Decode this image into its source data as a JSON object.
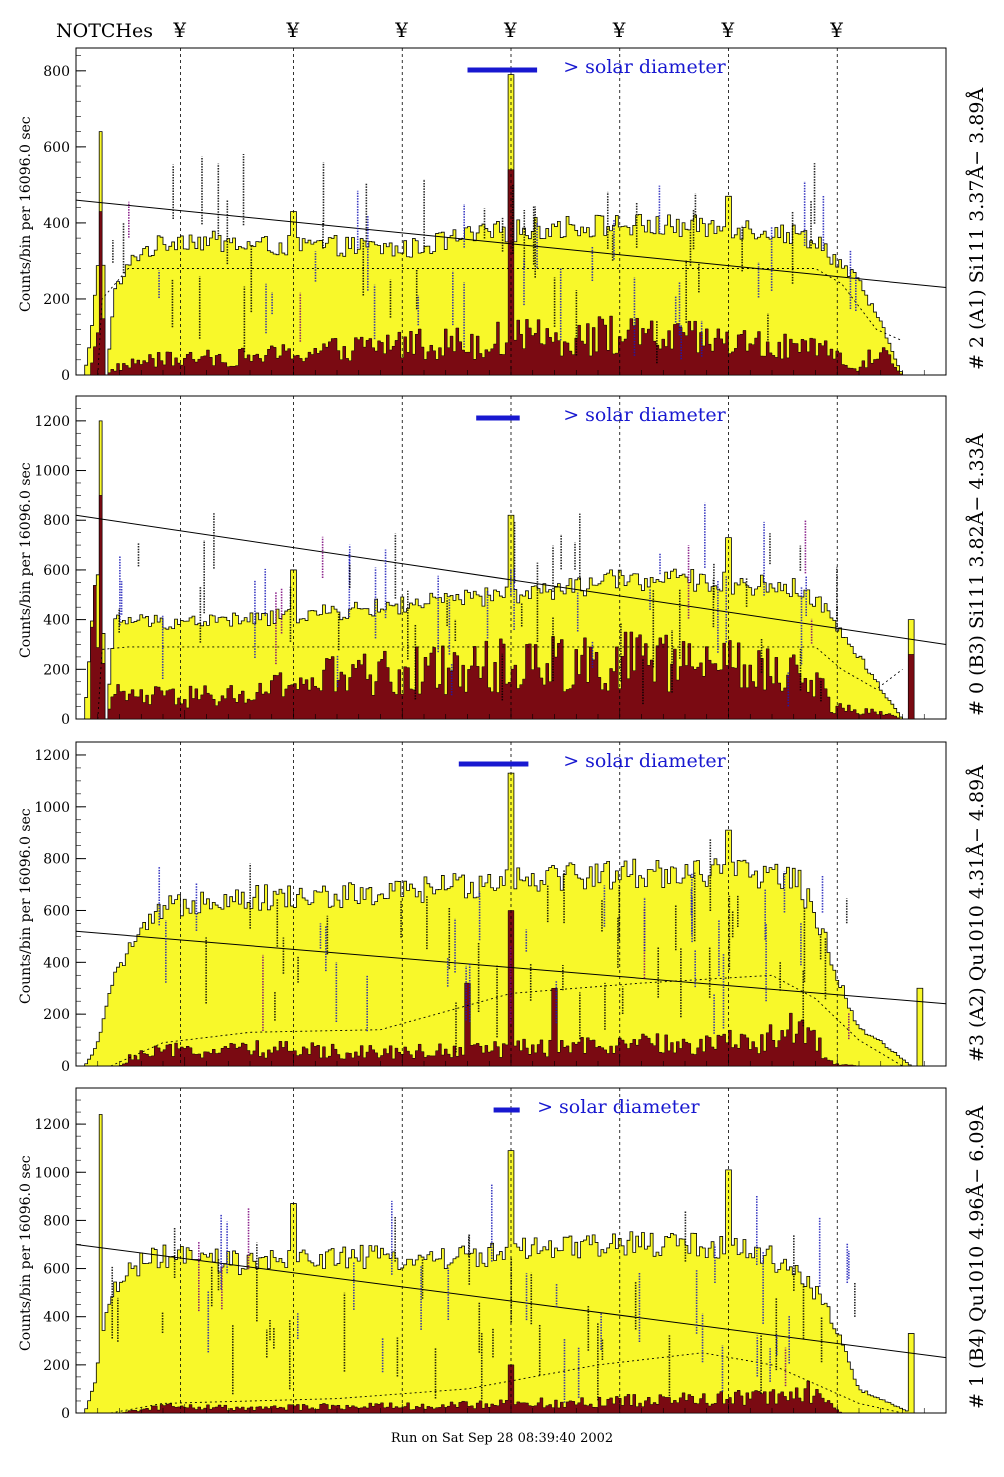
{
  "header": {
    "notches_label": "NOTCHes",
    "notch_symbol": "¥",
    "notch_positions_x": [
      0.12,
      0.25,
      0.375,
      0.5,
      0.625,
      0.75,
      0.875
    ]
  },
  "colors": {
    "fill_yellow": "#f8f82a",
    "fill_darkred": "#7a0a12",
    "legend_blue": "#1818d0",
    "label_blue": "#1a1ab8",
    "label_purple": "#7a007a"
  },
  "footer": "Run on Sat Sep 28 08:39:40 2002",
  "chart_data": [
    {
      "type": "bar",
      "title": "# 2 (A1) Si111  3.37Å− 3.89Å",
      "ylabel": "Counts/bin per  16096.0 sec",
      "legend": "> solar diameter",
      "ylim": [
        0,
        860
      ],
      "yticks": [
        0,
        200,
        400,
        600,
        800
      ],
      "x_range": [
        0,
        1
      ],
      "series": [
        {
          "name": "total",
          "knots": [
            [
              0,
              0
            ],
            [
              0.01,
              0
            ],
            [
              0.02,
              150
            ],
            [
              0.025,
              300
            ],
            [
              0.03,
              420
            ],
            [
              0.035,
              0
            ],
            [
              0.045,
              220
            ],
            [
              0.07,
              320
            ],
            [
              0.12,
              360
            ],
            [
              0.2,
              340
            ],
            [
              0.3,
              340
            ],
            [
              0.38,
              330
            ],
            [
              0.44,
              360
            ],
            [
              0.5,
              380
            ],
            [
              0.56,
              390
            ],
            [
              0.62,
              395
            ],
            [
              0.7,
              390
            ],
            [
              0.78,
              385
            ],
            [
              0.85,
              360
            ],
            [
              0.875,
              300
            ],
            [
              0.9,
              240
            ],
            [
              0.92,
              160
            ],
            [
              0.95,
              0
            ],
            [
              1,
              0
            ]
          ],
          "spikes": [
            [
              0.028,
              640
            ],
            [
              0.25,
              430
            ],
            [
              0.5,
              790
            ],
            [
              0.75,
              470
            ]
          ]
        },
        {
          "name": "dark",
          "knots": [
            [
              0,
              0
            ],
            [
              0.015,
              0
            ],
            [
              0.02,
              60
            ],
            [
              0.028,
              250
            ],
            [
              0.035,
              0
            ],
            [
              0.045,
              20
            ],
            [
              0.08,
              40
            ],
            [
              0.2,
              50
            ],
            [
              0.3,
              70
            ],
            [
              0.38,
              90
            ],
            [
              0.45,
              90
            ],
            [
              0.5,
              100
            ],
            [
              0.6,
              110
            ],
            [
              0.7,
              100
            ],
            [
              0.8,
              80
            ],
            [
              0.87,
              60
            ],
            [
              0.9,
              10
            ],
            [
              0.92,
              80
            ],
            [
              0.95,
              0
            ],
            [
              1,
              0
            ]
          ],
          "spikes": [
            [
              0.028,
              430
            ],
            [
              0.5,
              540
            ]
          ]
        }
      ],
      "trend_start": 460,
      "trend_end": 230,
      "dashed_knots": [
        [
          0.025,
          0
        ],
        [
          0.03,
          200
        ],
        [
          0.06,
          280
        ],
        [
          0.85,
          280
        ],
        [
          0.88,
          240
        ],
        [
          0.92,
          120
        ],
        [
          0.95,
          90
        ]
      ],
      "legend_bar": [
        0.45,
        0.53
      ],
      "legend_text_x": 0.56
    },
    {
      "type": "bar",
      "title": "# 0 (B3) Si111  3.82Å− 4.33Å",
      "ylabel": "Counts/bin per  16096.0 sec",
      "legend": "> solar diameter",
      "ylim": [
        0,
        1300
      ],
      "yticks": [
        0,
        200,
        400,
        600,
        800,
        1000,
        1200
      ],
      "x_range": [
        0,
        1
      ],
      "series": [
        {
          "name": "total",
          "knots": [
            [
              0,
              0
            ],
            [
              0.01,
              0
            ],
            [
              0.02,
              500
            ],
            [
              0.028,
              700
            ],
            [
              0.035,
              0
            ],
            [
              0.045,
              400
            ],
            [
              0.1,
              390
            ],
            [
              0.2,
              400
            ],
            [
              0.3,
              430
            ],
            [
              0.38,
              460
            ],
            [
              0.44,
              480
            ],
            [
              0.5,
              500
            ],
            [
              0.56,
              520
            ],
            [
              0.62,
              560
            ],
            [
              0.7,
              560
            ],
            [
              0.78,
              540
            ],
            [
              0.84,
              520
            ],
            [
              0.87,
              400
            ],
            [
              0.89,
              300
            ],
            [
              0.92,
              150
            ],
            [
              0.95,
              0
            ],
            [
              1,
              0
            ]
          ],
          "spikes": [
            [
              0.028,
              1200
            ],
            [
              0.25,
              600
            ],
            [
              0.5,
              820
            ],
            [
              0.75,
              730
            ],
            [
              0.96,
              400
            ]
          ]
        },
        {
          "name": "dark",
          "knots": [
            [
              0,
              0
            ],
            [
              0.015,
              0
            ],
            [
              0.02,
              400
            ],
            [
              0.028,
              700
            ],
            [
              0.035,
              0
            ],
            [
              0.045,
              100
            ],
            [
              0.1,
              90
            ],
            [
              0.2,
              100
            ],
            [
              0.25,
              150
            ],
            [
              0.3,
              180
            ],
            [
              0.38,
              200
            ],
            [
              0.45,
              220
            ],
            [
              0.5,
              230
            ],
            [
              0.6,
              250
            ],
            [
              0.7,
              240
            ],
            [
              0.8,
              200
            ],
            [
              0.85,
              160
            ],
            [
              0.87,
              50
            ],
            [
              0.92,
              30
            ],
            [
              0.95,
              0
            ],
            [
              1,
              0
            ]
          ],
          "spikes": [
            [
              0.028,
              900
            ],
            [
              0.96,
              260
            ]
          ]
        }
      ],
      "trend_start": 820,
      "trend_end": 300,
      "dashed_knots": [
        [
          0.025,
          0
        ],
        [
          0.03,
          280
        ],
        [
          0.06,
          290
        ],
        [
          0.85,
          290
        ],
        [
          0.88,
          200
        ],
        [
          0.92,
          120
        ],
        [
          0.95,
          200
        ]
      ],
      "legend_bar": [
        0.46,
        0.51
      ],
      "legend_text_x": 0.56
    },
    {
      "type": "bar",
      "title": "#3 (A2) Qu1010  4.31Å− 4.89Å",
      "ylabel": "Counts/bin per  16096.0 sec",
      "legend": "> solar diameter",
      "ylim": [
        0,
        1250
      ],
      "yticks": [
        0,
        200,
        400,
        600,
        800,
        1000,
        1200
      ],
      "x_range": [
        0,
        1
      ],
      "series": [
        {
          "name": "total",
          "knots": [
            [
              0,
              0
            ],
            [
              0.01,
              0
            ],
            [
              0.02,
              50
            ],
            [
              0.03,
              150
            ],
            [
              0.045,
              350
            ],
            [
              0.06,
              450
            ],
            [
              0.1,
              600
            ],
            [
              0.15,
              650
            ],
            [
              0.25,
              650
            ],
            [
              0.35,
              660
            ],
            [
              0.45,
              700
            ],
            [
              0.5,
              730
            ],
            [
              0.6,
              740
            ],
            [
              0.7,
              750
            ],
            [
              0.8,
              740
            ],
            [
              0.83,
              720
            ],
            [
              0.86,
              500
            ],
            [
              0.88,
              300
            ],
            [
              0.9,
              150
            ],
            [
              0.93,
              80
            ],
            [
              0.96,
              0
            ],
            [
              1,
              0
            ]
          ],
          "spikes": [
            [
              0.5,
              1130
            ],
            [
              0.75,
              910
            ],
            [
              0.97,
              300
            ]
          ]
        },
        {
          "name": "dark",
          "knots": [
            [
              0,
              0
            ],
            [
              0.05,
              0
            ],
            [
              0.06,
              30
            ],
            [
              0.1,
              60
            ],
            [
              0.2,
              70
            ],
            [
              0.3,
              60
            ],
            [
              0.4,
              60
            ],
            [
              0.5,
              70
            ],
            [
              0.6,
              80
            ],
            [
              0.7,
              90
            ],
            [
              0.78,
              100
            ],
            [
              0.82,
              150
            ],
            [
              0.85,
              100
            ],
            [
              0.87,
              10
            ],
            [
              0.9,
              0
            ],
            [
              1,
              0
            ]
          ],
          "spikes": [
            [
              0.5,
              600
            ],
            [
              0.45,
              320
            ],
            [
              0.55,
              300
            ]
          ]
        }
      ],
      "trend_start": 520,
      "trend_end": 240,
      "dashed_knots": [
        [
          0.04,
          0
        ],
        [
          0.1,
          90
        ],
        [
          0.2,
          130
        ],
        [
          0.35,
          140
        ],
        [
          0.5,
          280
        ],
        [
          0.65,
          320
        ],
        [
          0.8,
          350
        ],
        [
          0.85,
          260
        ],
        [
          0.9,
          100
        ],
        [
          0.95,
          0
        ]
      ],
      "legend_bar": [
        0.44,
        0.52
      ],
      "legend_text_x": 0.56
    },
    {
      "type": "bar",
      "title": "# 1 (B4) Qu1010 4.96Å− 6.09Å",
      "ylabel": "Counts/bin per  16096.0 sec",
      "legend": "> solar diameter",
      "ylim": [
        0,
        1350
      ],
      "yticks": [
        0,
        200,
        400,
        600,
        800,
        1000,
        1200
      ],
      "x_range": [
        0,
        1
      ],
      "series": [
        {
          "name": "total",
          "knots": [
            [
              0,
              0
            ],
            [
              0.01,
              0
            ],
            [
              0.02,
              100
            ],
            [
              0.03,
              300
            ],
            [
              0.04,
              500
            ],
            [
              0.06,
              600
            ],
            [
              0.1,
              650
            ],
            [
              0.2,
              620
            ],
            [
              0.25,
              640
            ],
            [
              0.3,
              650
            ],
            [
              0.38,
              640
            ],
            [
              0.45,
              650
            ],
            [
              0.5,
              670
            ],
            [
              0.56,
              680
            ],
            [
              0.62,
              700
            ],
            [
              0.7,
              700
            ],
            [
              0.78,
              680
            ],
            [
              0.84,
              560
            ],
            [
              0.86,
              450
            ],
            [
              0.88,
              300
            ],
            [
              0.9,
              100
            ],
            [
              0.93,
              50
            ],
            [
              0.96,
              0
            ],
            [
              1,
              0
            ]
          ],
          "spikes": [
            [
              0.028,
              1240
            ],
            [
              0.25,
              870
            ],
            [
              0.5,
              1090
            ],
            [
              0.75,
              1010
            ],
            [
              0.96,
              330
            ]
          ]
        },
        {
          "name": "dark",
          "knots": [
            [
              0,
              0
            ],
            [
              0.05,
              0
            ],
            [
              0.1,
              30
            ],
            [
              0.2,
              20
            ],
            [
              0.3,
              30
            ],
            [
              0.4,
              30
            ],
            [
              0.5,
              40
            ],
            [
              0.6,
              50
            ],
            [
              0.7,
              60
            ],
            [
              0.8,
              70
            ],
            [
              0.84,
              100
            ],
            [
              0.86,
              60
            ],
            [
              0.88,
              0
            ],
            [
              1,
              0
            ]
          ],
          "spikes": [
            [
              0.5,
              200
            ]
          ]
        }
      ],
      "trend_start": 700,
      "trend_end": 230,
      "dashed_knots": [
        [
          0.04,
          0
        ],
        [
          0.1,
          40
        ],
        [
          0.3,
          60
        ],
        [
          0.45,
          100
        ],
        [
          0.6,
          200
        ],
        [
          0.72,
          250
        ],
        [
          0.8,
          200
        ],
        [
          0.85,
          120
        ],
        [
          0.9,
          40
        ],
        [
          0.95,
          0
        ]
      ],
      "legend_bar": [
        0.48,
        0.51
      ],
      "legend_text_x": 0.53
    }
  ]
}
